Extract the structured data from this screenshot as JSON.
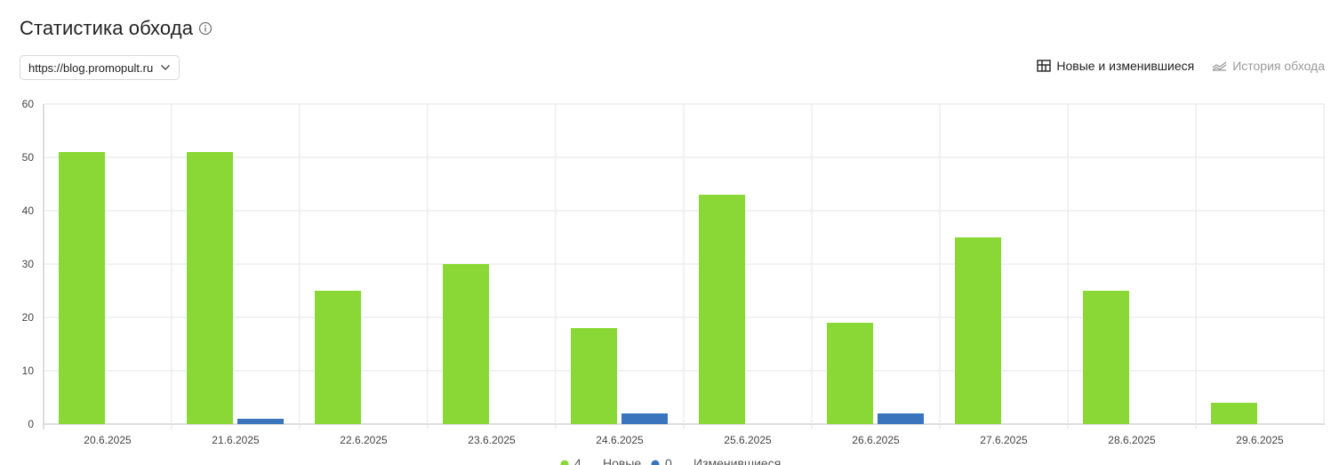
{
  "header": {
    "title": "Статистика обхода",
    "info_icon": "info-circle-icon"
  },
  "site_selector": {
    "value": "https://blog.promopult.ru",
    "icon": "chevron-down-icon"
  },
  "view_tabs": [
    {
      "label": "Новые и изменившиеся",
      "icon": "table-icon",
      "active": true
    },
    {
      "label": "История обхода",
      "icon": "area-chart-icon",
      "active": false
    }
  ],
  "colors": {
    "new": "#8ad836",
    "changed": "#3a74bd",
    "grid": "#e6e6e6",
    "axis": "#bdbdbd"
  },
  "chart_data": {
    "type": "bar",
    "categories": [
      "20.6.2025",
      "21.6.2025",
      "22.6.2025",
      "23.6.2025",
      "24.6.2025",
      "25.6.2025",
      "26.6.2025",
      "27.6.2025",
      "28.6.2025",
      "29.6.2025"
    ],
    "series": [
      {
        "name": "Новые",
        "values": [
          51,
          51,
          25,
          30,
          18,
          43,
          19,
          35,
          25,
          4
        ]
      },
      {
        "name": "Изменившиеся",
        "values": [
          0,
          1,
          0,
          0,
          2,
          0,
          2,
          0,
          0,
          0
        ]
      }
    ],
    "legend_counts": [
      "4",
      "0"
    ],
    "ylim": [
      0,
      60
    ],
    "yticks": [
      0,
      10,
      20,
      30,
      40,
      50,
      60
    ],
    "grid": true,
    "legend_position": "bottom"
  }
}
